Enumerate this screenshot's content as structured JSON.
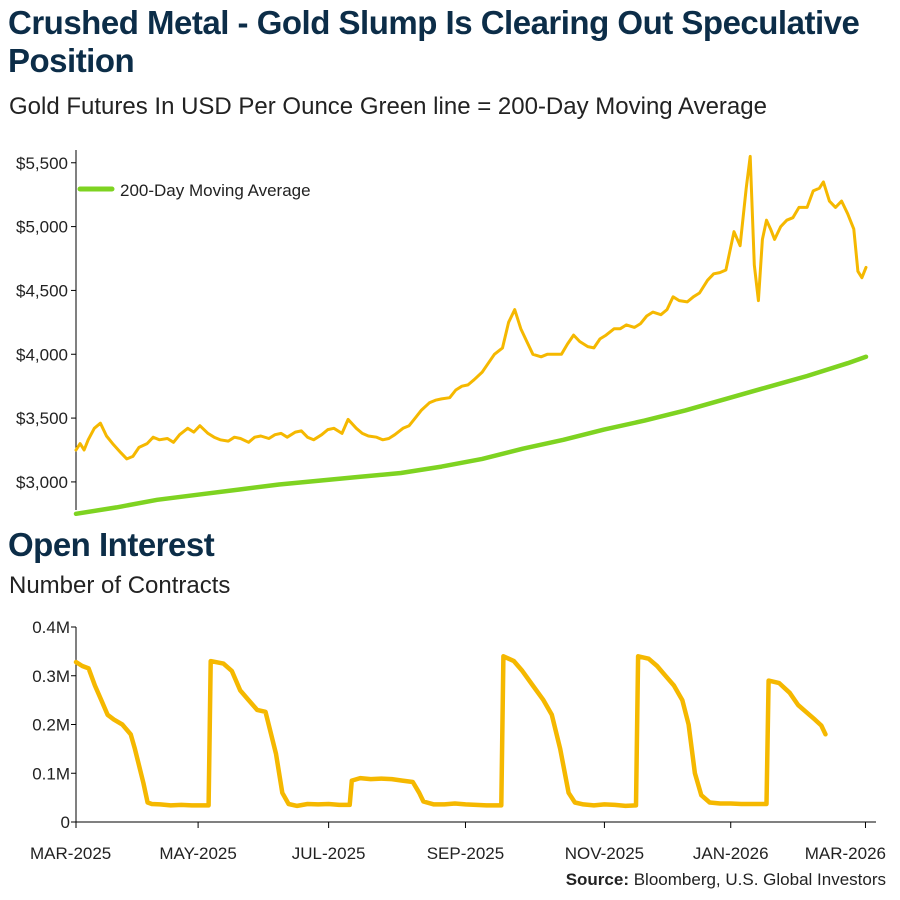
{
  "header": {
    "title": "Crushed Metal - Gold Slump Is Clearing Out Speculative Position",
    "subtitle": "Gold Futures In USD Per Ounce Green line = 200-Day Moving Average"
  },
  "open_interest_section": {
    "title": "Open Interest",
    "subtitle": "Number of Contracts"
  },
  "source": {
    "label": "Source:",
    "text": "Bloomberg, U.S. Global Investors"
  },
  "colors": {
    "gold": "#f5b800",
    "green": "#7ed321",
    "axis": "#000000",
    "title": "#0c2d48"
  },
  "chart_data": [
    {
      "type": "line",
      "title": "Gold Futures In USD Per Ounce",
      "ylim": [
        2780,
        5600
      ],
      "yticks": [
        3000,
        3500,
        4000,
        4500,
        5000,
        5500
      ],
      "ytick_labels": [
        "$3,000",
        "$3,500",
        "$4,000",
        "$4,500",
        "$5,000",
        "$5,500"
      ],
      "legend": {
        "label": "200-Day Moving Average",
        "position": "top-left"
      },
      "series": [
        {
          "name": "Gold Futures",
          "color": "#f5b800",
          "points": [
            [
              0,
              3250
            ],
            [
              2,
              3300
            ],
            [
              4,
              3250
            ],
            [
              6,
              3330
            ],
            [
              9,
              3420
            ],
            [
              12,
              3460
            ],
            [
              15,
              3360
            ],
            [
              18,
              3300
            ],
            [
              22,
              3230
            ],
            [
              25,
              3180
            ],
            [
              28,
              3200
            ],
            [
              31,
              3270
            ],
            [
              35,
              3300
            ],
            [
              38,
              3350
            ],
            [
              41,
              3330
            ],
            [
              45,
              3340
            ],
            [
              48,
              3310
            ],
            [
              51,
              3370
            ],
            [
              55,
              3420
            ],
            [
              58,
              3390
            ],
            [
              61,
              3440
            ],
            [
              65,
              3380
            ],
            [
              68,
              3350
            ],
            [
              71,
              3330
            ],
            [
              75,
              3320
            ],
            [
              78,
              3350
            ],
            [
              81,
              3340
            ],
            [
              85,
              3310
            ],
            [
              88,
              3350
            ],
            [
              91,
              3360
            ],
            [
              95,
              3340
            ],
            [
              98,
              3370
            ],
            [
              101,
              3380
            ],
            [
              104,
              3350
            ],
            [
              108,
              3390
            ],
            [
              111,
              3400
            ],
            [
              114,
              3350
            ],
            [
              117,
              3330
            ],
            [
              121,
              3370
            ],
            [
              124,
              3410
            ],
            [
              127,
              3420
            ],
            [
              131,
              3380
            ],
            [
              134,
              3490
            ],
            [
              138,
              3420
            ],
            [
              141,
              3380
            ],
            [
              144,
              3360
            ],
            [
              148,
              3350
            ],
            [
              151,
              3330
            ],
            [
              154,
              3340
            ],
            [
              157,
              3370
            ],
            [
              161,
              3420
            ],
            [
              164,
              3440
            ],
            [
              167,
              3500
            ],
            [
              170,
              3560
            ],
            [
              174,
              3620
            ],
            [
              177,
              3640
            ],
            [
              180,
              3650
            ],
            [
              184,
              3660
            ],
            [
              187,
              3720
            ],
            [
              190,
              3750
            ],
            [
              193,
              3760
            ],
            [
              196,
              3800
            ],
            [
              200,
              3860
            ],
            [
              203,
              3930
            ],
            [
              206,
              4000
            ],
            [
              210,
              4050
            ],
            [
              213,
              4250
            ],
            [
              216,
              4350
            ],
            [
              219,
              4200
            ],
            [
              222,
              4100
            ],
            [
              225,
              4000
            ],
            [
              229,
              3980
            ],
            [
              232,
              4000
            ],
            [
              235,
              4000
            ],
            [
              239,
              4000
            ],
            [
              242,
              4080
            ],
            [
              245,
              4150
            ],
            [
              248,
              4100
            ],
            [
              252,
              4060
            ],
            [
              255,
              4050
            ],
            [
              258,
              4120
            ],
            [
              261,
              4150
            ],
            [
              265,
              4200
            ],
            [
              268,
              4200
            ],
            [
              271,
              4230
            ],
            [
              275,
              4210
            ],
            [
              278,
              4240
            ],
            [
              281,
              4300
            ],
            [
              284,
              4330
            ],
            [
              288,
              4310
            ],
            [
              291,
              4350
            ],
            [
              294,
              4450
            ],
            [
              297,
              4420
            ],
            [
              301,
              4410
            ],
            [
              304,
              4450
            ],
            [
              307,
              4480
            ],
            [
              311,
              4580
            ],
            [
              314,
              4630
            ],
            [
              317,
              4640
            ],
            [
              320,
              4660
            ],
            [
              324,
              4960
            ],
            [
              327,
              4850
            ],
            [
              330,
              5300
            ],
            [
              332,
              5550
            ],
            [
              334,
              4700
            ],
            [
              336,
              4420
            ],
            [
              338,
              4900
            ],
            [
              340,
              5050
            ],
            [
              342,
              4980
            ],
            [
              344,
              4900
            ],
            [
              347,
              5000
            ],
            [
              350,
              5050
            ],
            [
              353,
              5070
            ],
            [
              356,
              5150
            ],
            [
              360,
              5150
            ],
            [
              363,
              5280
            ],
            [
              366,
              5300
            ],
            [
              368,
              5350
            ],
            [
              371,
              5200
            ],
            [
              374,
              5150
            ],
            [
              377,
              5200
            ],
            [
              380,
              5100
            ],
            [
              383,
              4980
            ],
            [
              385,
              4650
            ],
            [
              387,
              4600
            ],
            [
              389,
              4680
            ]
          ]
        },
        {
          "name": "200-Day Moving Average",
          "color": "#7ed321",
          "points": [
            [
              0,
              2750
            ],
            [
              20,
              2800
            ],
            [
              40,
              2860
            ],
            [
              60,
              2900
            ],
            [
              80,
              2940
            ],
            [
              100,
              2980
            ],
            [
              120,
              3010
            ],
            [
              140,
              3040
            ],
            [
              160,
              3070
            ],
            [
              180,
              3120
            ],
            [
              200,
              3180
            ],
            [
              220,
              3260
            ],
            [
              240,
              3330
            ],
            [
              260,
              3410
            ],
            [
              280,
              3480
            ],
            [
              300,
              3560
            ],
            [
              320,
              3650
            ],
            [
              340,
              3740
            ],
            [
              360,
              3830
            ],
            [
              380,
              3930
            ],
            [
              389,
              3980
            ]
          ]
        }
      ]
    },
    {
      "type": "line",
      "title": "Open Interest",
      "ylabel": "Number of Contracts",
      "ylim": [
        0,
        0.4
      ],
      "yticks": [
        0,
        0.1,
        0.2,
        0.3,
        0.4
      ],
      "ytick_labels": [
        "0",
        "0.1M",
        "0.2M",
        "0.3M",
        "0.4M"
      ],
      "x_labels": [
        "MAR-2025",
        "MAY-2025",
        "JUL-2025",
        "SEP-2025",
        "NOV-2025",
        "JAN-2026",
        "MAR-2026"
      ],
      "x_label_positions": [
        0,
        58,
        120,
        185,
        251,
        311,
        375
      ],
      "series": [
        {
          "name": "Open Interest",
          "color": "#f5b800",
          "points": [
            [
              0,
              0.328
            ],
            [
              3,
              0.32
            ],
            [
              6,
              0.315
            ],
            [
              9,
              0.28
            ],
            [
              12,
              0.25
            ],
            [
              15,
              0.22
            ],
            [
              18,
              0.21
            ],
            [
              22,
              0.2
            ],
            [
              26,
              0.18
            ],
            [
              28,
              0.15
            ],
            [
              32,
              0.08
            ],
            [
              34,
              0.04
            ],
            [
              36,
              0.037
            ],
            [
              40,
              0.036
            ],
            [
              45,
              0.034
            ],
            [
              50,
              0.035
            ],
            [
              55,
              0.034
            ],
            [
              60,
              0.034
            ],
            [
              63,
              0.034
            ],
            [
              64,
              0.33
            ],
            [
              70,
              0.325
            ],
            [
              74,
              0.31
            ],
            [
              78,
              0.27
            ],
            [
              82,
              0.25
            ],
            [
              86,
              0.23
            ],
            [
              90,
              0.226
            ],
            [
              95,
              0.14
            ],
            [
              98,
              0.06
            ],
            [
              101,
              0.037
            ],
            [
              105,
              0.033
            ],
            [
              110,
              0.037
            ],
            [
              115,
              0.036
            ],
            [
              120,
              0.037
            ],
            [
              125,
              0.035
            ],
            [
              130,
              0.035
            ],
            [
              131,
              0.085
            ],
            [
              135,
              0.09
            ],
            [
              140,
              0.088
            ],
            [
              145,
              0.089
            ],
            [
              150,
              0.088
            ],
            [
              155,
              0.085
            ],
            [
              160,
              0.082
            ],
            [
              163,
              0.06
            ],
            [
              165,
              0.042
            ],
            [
              170,
              0.036
            ],
            [
              175,
              0.036
            ],
            [
              180,
              0.038
            ],
            [
              185,
              0.036
            ],
            [
              190,
              0.035
            ],
            [
              195,
              0.034
            ],
            [
              200,
              0.034
            ],
            [
              202,
              0.034
            ],
            [
              203,
              0.34
            ],
            [
              208,
              0.33
            ],
            [
              212,
              0.31
            ],
            [
              217,
              0.28
            ],
            [
              222,
              0.25
            ],
            [
              226,
              0.22
            ],
            [
              230,
              0.15
            ],
            [
              234,
              0.06
            ],
            [
              237,
              0.04
            ],
            [
              241,
              0.036
            ],
            [
              246,
              0.034
            ],
            [
              251,
              0.036
            ],
            [
              256,
              0.035
            ],
            [
              261,
              0.033
            ],
            [
              266,
              0.034
            ],
            [
              267,
              0.34
            ],
            [
              272,
              0.335
            ],
            [
              276,
              0.32
            ],
            [
              280,
              0.3
            ],
            [
              284,
              0.28
            ],
            [
              288,
              0.25
            ],
            [
              291,
              0.2
            ],
            [
              294,
              0.1
            ],
            [
              297,
              0.055
            ],
            [
              301,
              0.04
            ],
            [
              306,
              0.038
            ],
            [
              311,
              0.038
            ],
            [
              316,
              0.037
            ],
            [
              321,
              0.037
            ],
            [
              326,
              0.037
            ],
            [
              328,
              0.037
            ],
            [
              329,
              0.29
            ],
            [
              334,
              0.285
            ],
            [
              339,
              0.265
            ],
            [
              343,
              0.24
            ],
            [
              347,
              0.225
            ],
            [
              351,
              0.21
            ],
            [
              354,
              0.198
            ],
            [
              356,
              0.18
            ]
          ]
        }
      ]
    }
  ]
}
